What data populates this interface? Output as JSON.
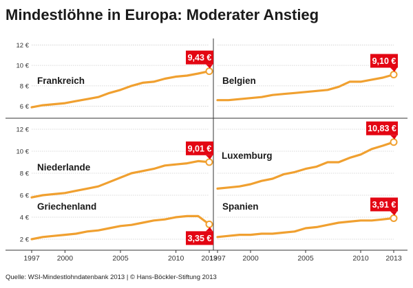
{
  "title": "Mindestlöhne in Europa: Moderater Anstieg",
  "source": "Quelle: WSI-Mindestlohndatenbank 2013 | © Hans-Böckler-Stiftung 2013",
  "colors": {
    "line": "#f0a030",
    "callout": "#e30613",
    "grid": "#cccccc",
    "text": "#1a1a1a"
  },
  "chart_data": {
    "type": "line",
    "x_ticks": [
      "1997",
      "2000",
      "2005",
      "2010",
      "2013"
    ],
    "x_range": [
      1997,
      2013
    ],
    "rows": [
      {
        "y_ticks": [
          "6 €",
          "8 €",
          "10 €",
          "12 €"
        ],
        "ylim": [
          5.5,
          12.5
        ]
      },
      {
        "y_ticks": [
          "2 €",
          "4 €",
          "6 €",
          "8 €",
          "10 €",
          "12 €"
        ],
        "ylim": [
          1.5,
          12.5
        ]
      }
    ],
    "panels": [
      {
        "name": "Frankreich",
        "row": 0,
        "col": 0,
        "label": "9,43 €",
        "label_pos": "above",
        "x": [
          1997,
          1998,
          1999,
          2000,
          2001,
          2002,
          2003,
          2004,
          2005,
          2006,
          2007,
          2008,
          2009,
          2010,
          2011,
          2012,
          2013
        ],
        "y": [
          5.9,
          6.1,
          6.2,
          6.3,
          6.5,
          6.7,
          6.9,
          7.3,
          7.6,
          8.0,
          8.3,
          8.4,
          8.7,
          8.9,
          9.0,
          9.2,
          9.43
        ]
      },
      {
        "name": "Belgien",
        "row": 0,
        "col": 1,
        "label": "9,10 €",
        "label_pos": "above",
        "x": [
          1997,
          1998,
          1999,
          2000,
          2001,
          2002,
          2003,
          2004,
          2005,
          2006,
          2007,
          2008,
          2009,
          2010,
          2011,
          2012,
          2013
        ],
        "y": [
          6.6,
          6.6,
          6.7,
          6.8,
          6.9,
          7.1,
          7.2,
          7.3,
          7.4,
          7.5,
          7.6,
          7.9,
          8.4,
          8.4,
          8.6,
          8.8,
          9.1
        ]
      },
      {
        "name": "Niederlande",
        "row": 1,
        "col": 0,
        "label": "9,01 €",
        "label_pos": "above",
        "x": [
          1997,
          1998,
          1999,
          2000,
          2001,
          2002,
          2003,
          2004,
          2005,
          2006,
          2007,
          2008,
          2009,
          2010,
          2011,
          2012,
          2013
        ],
        "y": [
          5.8,
          6.0,
          6.1,
          6.2,
          6.4,
          6.6,
          6.8,
          7.2,
          7.6,
          8.0,
          8.2,
          8.4,
          8.7,
          8.8,
          8.9,
          9.1,
          9.01
        ]
      },
      {
        "name": "Luxemburg",
        "row": 1,
        "col": 1,
        "label": "10,83 €",
        "label_pos": "above",
        "x": [
          1997,
          1998,
          1999,
          2000,
          2001,
          2002,
          2003,
          2004,
          2005,
          2006,
          2007,
          2008,
          2009,
          2010,
          2011,
          2012,
          2013
        ],
        "y": [
          6.6,
          6.7,
          6.8,
          7.0,
          7.3,
          7.5,
          7.9,
          8.1,
          8.4,
          8.6,
          9.0,
          9.0,
          9.4,
          9.7,
          10.2,
          10.5,
          10.83
        ]
      },
      {
        "name": "Griechenland",
        "row": 1,
        "col": 0,
        "label": "3,35 €",
        "label_pos": "below",
        "x": [
          1997,
          1998,
          1999,
          2000,
          2001,
          2002,
          2003,
          2004,
          2005,
          2006,
          2007,
          2008,
          2009,
          2010,
          2011,
          2012,
          2013
        ],
        "y": [
          2.0,
          2.2,
          2.3,
          2.4,
          2.5,
          2.7,
          2.8,
          3.0,
          3.2,
          3.3,
          3.5,
          3.7,
          3.8,
          4.0,
          4.1,
          4.1,
          3.35
        ]
      },
      {
        "name": "Spanien",
        "row": 1,
        "col": 1,
        "label": "3,91 €",
        "label_pos": "above",
        "x": [
          1997,
          1998,
          1999,
          2000,
          2001,
          2002,
          2003,
          2004,
          2005,
          2006,
          2007,
          2008,
          2009,
          2010,
          2011,
          2012,
          2013
        ],
        "y": [
          2.2,
          2.3,
          2.4,
          2.4,
          2.5,
          2.5,
          2.6,
          2.7,
          3.0,
          3.1,
          3.3,
          3.5,
          3.6,
          3.7,
          3.7,
          3.8,
          3.91
        ]
      }
    ]
  }
}
